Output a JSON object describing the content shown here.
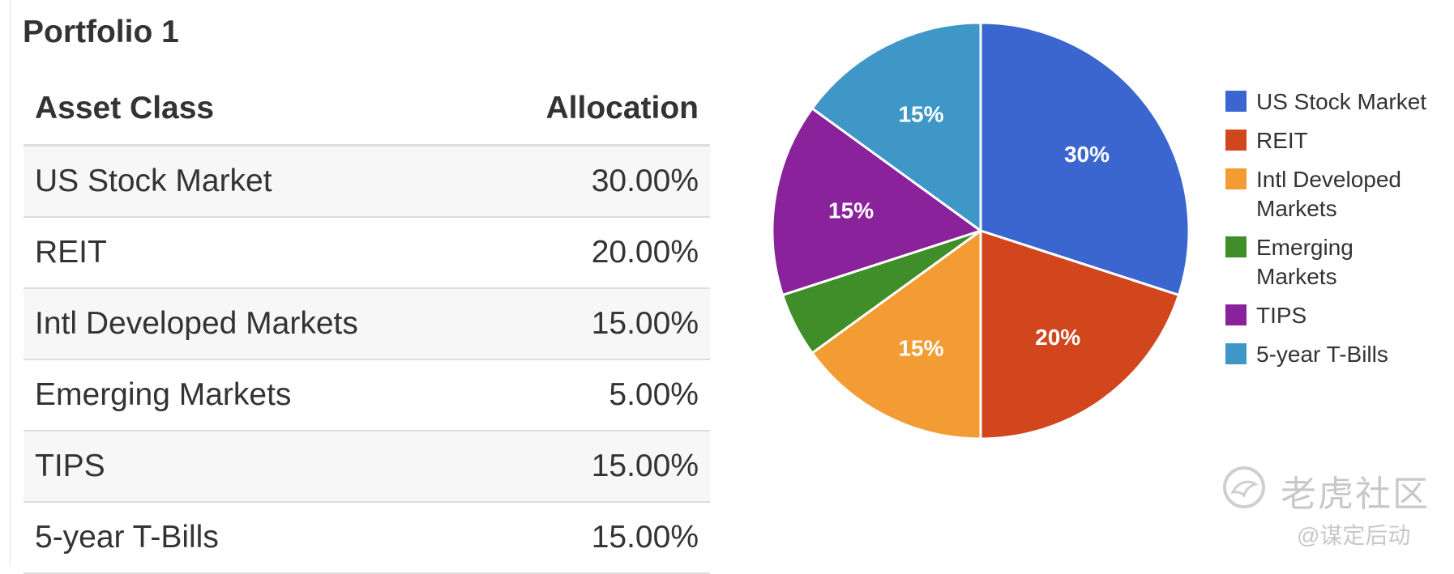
{
  "portfolio_title": "Portfolio 1",
  "table": {
    "headers": [
      "Asset Class",
      "Allocation"
    ],
    "rows": [
      {
        "asset": "US Stock Market",
        "allocation": "30.00%"
      },
      {
        "asset": "REIT",
        "allocation": "20.00%"
      },
      {
        "asset": "Intl Developed Markets",
        "allocation": "15.00%"
      },
      {
        "asset": "Emerging Markets",
        "allocation": "5.00%"
      },
      {
        "asset": "TIPS",
        "allocation": "15.00%"
      },
      {
        "asset": "5-year T-Bills",
        "allocation": "15.00%"
      }
    ]
  },
  "chart_data": {
    "type": "pie",
    "categories": [
      "US Stock Market",
      "REIT",
      "Intl Developed Markets",
      "Emerging Markets",
      "TIPS",
      "5-year T-Bills"
    ],
    "values": [
      30,
      20,
      15,
      5,
      15,
      15
    ],
    "slice_labels": [
      "30%",
      "20%",
      "15%",
      "",
      "15%",
      "15%"
    ],
    "colors": [
      "#3b66d0",
      "#d2461e",
      "#f39c34",
      "#3f8e29",
      "#8a229b",
      "#3f97c8"
    ],
    "legend": {
      "position": "right",
      "entries": [
        {
          "lines": [
            "US Stock Market"
          ],
          "color": "#3b66d0"
        },
        {
          "lines": [
            "REIT"
          ],
          "color": "#d2461e"
        },
        {
          "lines": [
            "Intl Developed",
            "Markets"
          ],
          "color": "#f39c34"
        },
        {
          "lines": [
            "Emerging",
            "Markets"
          ],
          "color": "#3f8e29"
        },
        {
          "lines": [
            "TIPS"
          ],
          "color": "#8a229b"
        },
        {
          "lines": [
            "5-year T-Bills"
          ],
          "color": "#3f97c8"
        }
      ]
    }
  },
  "watermark": {
    "brand": "老虎社区",
    "handle": "@谋定后动"
  }
}
